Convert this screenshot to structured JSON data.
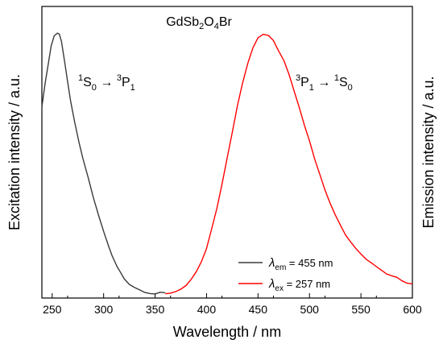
{
  "chart_data": {
    "type": "line",
    "title": "",
    "compound": "GdSb2O4Br",
    "xlabel": "Wavelength / nm",
    "ylabel_left": "Excitation intensity / a.u.",
    "ylabel_right": "Emission intensity / a.u.",
    "xlim": [
      240,
      600
    ],
    "ylim": [
      0,
      1.0
    ],
    "x_ticks": [
      250,
      300,
      350,
      400,
      450,
      500,
      550,
      600
    ],
    "y_ticks_labeled": false,
    "grid": false,
    "legend_position": "bottom-right",
    "annotations": [
      {
        "text": "1S0 → 3P1",
        "near_series": "excitation"
      },
      {
        "text": "3P1 → 1S0",
        "near_series": "emission"
      }
    ],
    "series": [
      {
        "name": "λem = 455 nm",
        "label_symbol": "λ",
        "label_sub": "em",
        "label_rest": " = 455 nm",
        "role": "excitation",
        "color": "#3a3a3a",
        "x": [
          240,
          243,
          246,
          249,
          252,
          255,
          257,
          259,
          262,
          265,
          268,
          272,
          276,
          280,
          285,
          290,
          295,
          300,
          305,
          308,
          310,
          313,
          316,
          320,
          325,
          330,
          335,
          340,
          345,
          350,
          355,
          360
        ],
        "y": [
          0.72,
          0.8,
          0.88,
          0.95,
          0.99,
          1.0,
          0.995,
          0.97,
          0.9,
          0.82,
          0.74,
          0.66,
          0.59,
          0.52,
          0.45,
          0.37,
          0.3,
          0.24,
          0.18,
          0.15,
          0.13,
          0.105,
          0.085,
          0.065,
          0.045,
          0.032,
          0.022,
          0.015,
          0.01,
          0.007,
          0.004,
          0.003
        ]
      },
      {
        "name": "λex = 257 nm",
        "label_symbol": "λ",
        "label_sub": "ex",
        "label_rest": " = 257 nm",
        "role": "emission",
        "color": "#ff0000",
        "x": [
          360,
          365,
          370,
          375,
          380,
          385,
          390,
          395,
          400,
          405,
          410,
          415,
          420,
          425,
          430,
          435,
          440,
          445,
          450,
          455,
          460,
          465,
          470,
          475,
          480,
          485,
          490,
          495,
          500,
          505,
          510,
          515,
          520,
          525,
          530,
          535,
          540,
          545,
          550,
          555,
          560,
          565,
          570,
          575,
          580,
          585,
          590,
          595,
          600
        ],
        "y": [
          0.003,
          0.008,
          0.015,
          0.025,
          0.04,
          0.06,
          0.09,
          0.13,
          0.18,
          0.25,
          0.33,
          0.42,
          0.52,
          0.62,
          0.72,
          0.81,
          0.89,
          0.95,
          0.985,
          1.0,
          0.995,
          0.975,
          0.94,
          0.895,
          0.84,
          0.78,
          0.715,
          0.65,
          0.585,
          0.52,
          0.46,
          0.405,
          0.355,
          0.31,
          0.27,
          0.235,
          0.205,
          0.178,
          0.155,
          0.135,
          0.118,
          0.103,
          0.09,
          0.079,
          0.07,
          0.062,
          0.055,
          0.05,
          0.045
        ]
      }
    ]
  }
}
